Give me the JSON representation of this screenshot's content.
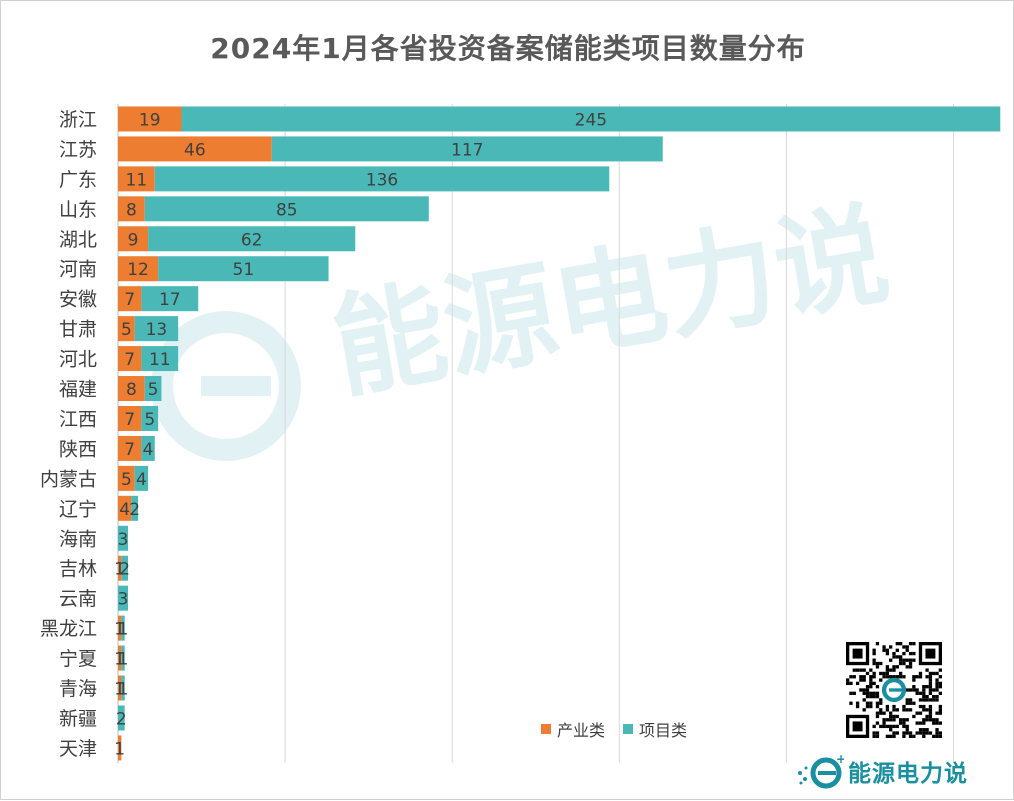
{
  "chart_data": {
    "type": "bar",
    "orientation": "horizontal",
    "stacked": true,
    "title": "2024年1月各省投资备案储能类项目数量分布",
    "categories": [
      "浙江",
      "江苏",
      "广东",
      "山东",
      "湖北",
      "河南",
      "安徽",
      "甘肃",
      "河北",
      "福建",
      "江西",
      "陕西",
      "内蒙古",
      "辽宁",
      "海南",
      "吉林",
      "云南",
      "黑龙江",
      "宁夏",
      "青海",
      "新疆",
      "天津"
    ],
    "series": [
      {
        "name": "产业类",
        "color": "#ed7d31",
        "values": [
          19,
          46,
          11,
          8,
          9,
          12,
          7,
          5,
          7,
          8,
          7,
          7,
          5,
          4,
          null,
          1,
          null,
          1,
          1,
          1,
          null,
          1
        ]
      },
      {
        "name": "项目类",
        "color": "#4bb8b8",
        "values": [
          245,
          117,
          136,
          85,
          62,
          51,
          17,
          13,
          11,
          5,
          5,
          4,
          4,
          2,
          3,
          2,
          3,
          1,
          1,
          1,
          2,
          null
        ]
      }
    ],
    "xlim": [
      0,
      260
    ],
    "x_gridlines": [
      0,
      50,
      100,
      150,
      200,
      250
    ],
    "x_axis_labels_shown": false,
    "legend_position": "bottom-right"
  },
  "watermark": {
    "text": "能源电力说"
  },
  "brand": {
    "name": "能源电力说"
  }
}
